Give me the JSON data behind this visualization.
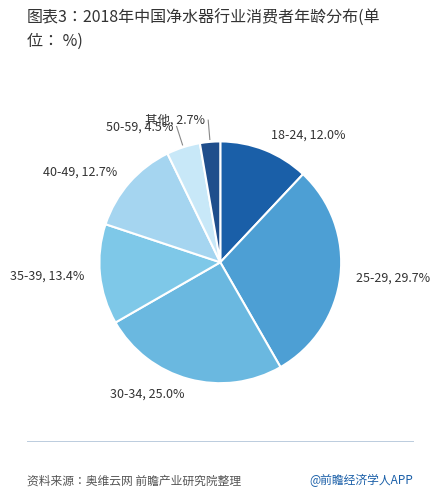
{
  "title_line1": "图表3：2018年中国净水器行业消费者年龄分布(单",
  "title_line2": "位： %)",
  "labels": [
    "18-24",
    "25-29",
    "30-34",
    "35-39",
    "40-49",
    "50-59",
    "其他"
  ],
  "values": [
    12.0,
    29.7,
    25.0,
    13.4,
    12.7,
    4.5,
    2.7
  ],
  "colors": [
    "#1a5fa8",
    "#4d9fd4",
    "#6ab8e0",
    "#7ec8e8",
    "#a5d5f0",
    "#c8e8f8",
    "#1f4e8c"
  ],
  "source_text": "资料来源：奥维云网 前瞻产业研究院整理",
  "watermark_text": "@前瞻经济学人APP",
  "bg_color": "#ffffff",
  "title_color": "#333333",
  "source_color": "#555555",
  "watermark_color": "#1a5fa8",
  "label_fontsize": 9.0,
  "title_fontsize": 11.5,
  "source_fontsize": 8.5,
  "watermark_fontsize": 8.5
}
